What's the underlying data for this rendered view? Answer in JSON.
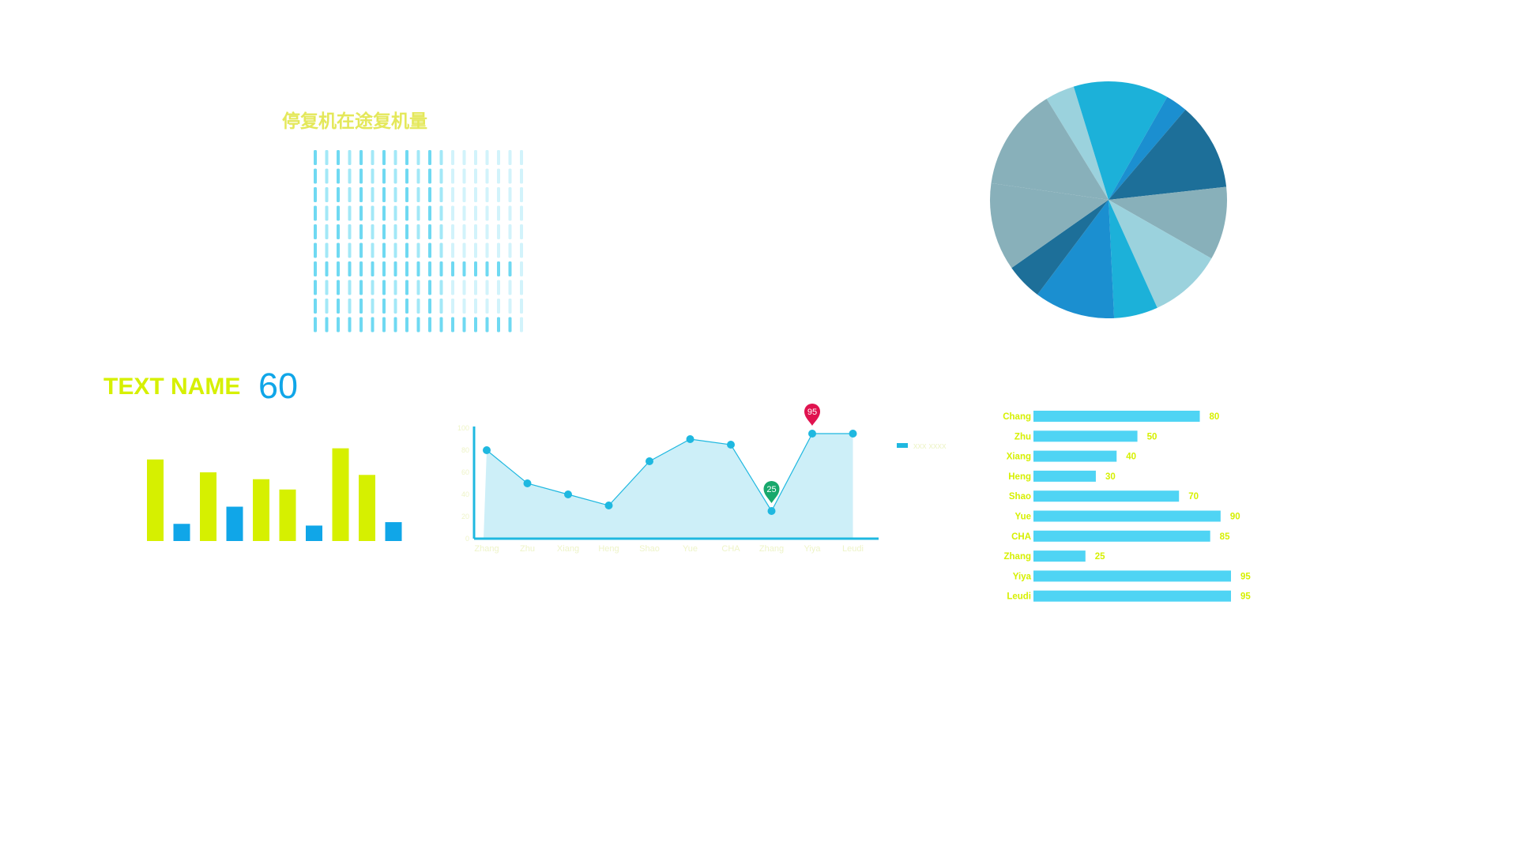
{
  "grid_title": "停复机在途复机量",
  "stat": {
    "label": "TEXT NAME",
    "value": "60"
  },
  "colors": {
    "accent_yellow": "#d6f000",
    "accent_blue": "#10a6e8",
    "title_yellow": "#e4e85a",
    "line": "#1fb8e0",
    "area": "#cdeff8",
    "hbar": "#4fd4f4",
    "marker_max": "#e0134f",
    "marker_min": "#18a86c",
    "dash": "#9ee6f6"
  },
  "chart_data": [
    {
      "type": "heatmap",
      "columns": 19,
      "rows": 10,
      "shades": {
        "strong": "#6fd9f2",
        "medium": "#a3e8f7",
        "light": "#d2f3fb"
      },
      "strong_columns": 12,
      "highlight_rows": [
        6,
        9
      ]
    },
    {
      "type": "pie",
      "values": [
        4,
        13,
        3,
        12,
        10,
        10,
        6,
        11,
        5,
        12,
        14
      ],
      "colors": [
        "#9bd2dd",
        "#1cb1d9",
        "#1b8fd0",
        "#1d6f99",
        "#88b0ba",
        "#9bd2dd",
        "#1cb1d9",
        "#1b8fd0",
        "#1d6f99",
        "#88b0ba",
        "#88b0ba"
      ]
    },
    {
      "type": "bar",
      "values": [
        95,
        20,
        80,
        40,
        72,
        60,
        18,
        108,
        77,
        22
      ],
      "colors": [
        "#d6f000",
        "#10a6e8",
        "#d6f000",
        "#10a6e8",
        "#d6f000",
        "#d6f000",
        "#10a6e8",
        "#d6f000",
        "#d6f000",
        "#10a6e8"
      ],
      "ylim": [
        0,
        115
      ]
    },
    {
      "type": "area",
      "categories": [
        "Zhang",
        "Zhu",
        "Xiang",
        "Heng",
        "Shao",
        "Yue",
        "CHA",
        "Zhang",
        "Yiya",
        "Leudi"
      ],
      "series": [
        {
          "name": "xxx xxxx",
          "values": [
            80,
            50,
            40,
            30,
            70,
            90,
            85,
            25,
            95,
            95
          ]
        }
      ],
      "yticks": [
        0,
        20,
        40,
        60,
        80,
        100
      ],
      "ylim": [
        0,
        100
      ],
      "markers": [
        {
          "label": "95",
          "index": 8,
          "kind": "max"
        },
        {
          "label": "25",
          "index": 7,
          "kind": "min"
        }
      ]
    },
    {
      "type": "bar",
      "orientation": "horizontal",
      "categories": [
        "Chang",
        "Zhu",
        "Xiang",
        "Heng",
        "Shao",
        "Yue",
        "CHA",
        "Zhang",
        "Yiya",
        "Leudi"
      ],
      "values": [
        80,
        50,
        40,
        30,
        70,
        90,
        85,
        25,
        95,
        95
      ],
      "xlim": [
        0,
        95
      ]
    }
  ]
}
